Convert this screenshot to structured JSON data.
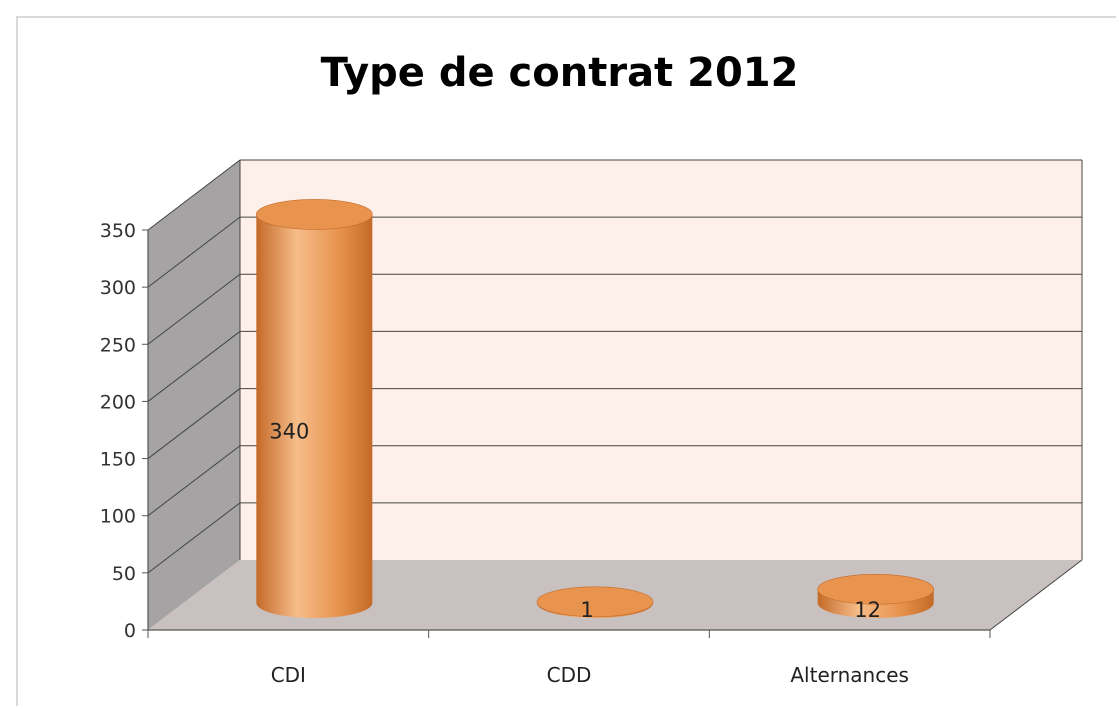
{
  "chart_data": {
    "type": "bar",
    "title": "Type de contrat 2012",
    "categories": [
      "CDI",
      "CDD",
      "Alternances"
    ],
    "values": [
      340,
      1,
      12
    ],
    "data_labels": [
      "340",
      "1",
      "12"
    ],
    "ylim": [
      0,
      350
    ],
    "yticks": [
      "0",
      "50",
      "100",
      "150",
      "200",
      "250",
      "300",
      "350"
    ],
    "grid": true,
    "legend": "none",
    "colors": {
      "bar": "#e8944f",
      "bar_light": "#f6bd8a",
      "bar_dark": "#c46a28",
      "back_wall": "#fdf0ea",
      "side_wall": "#a5a3a3",
      "floor": "#c9c1bf",
      "grid": "#444444"
    }
  }
}
